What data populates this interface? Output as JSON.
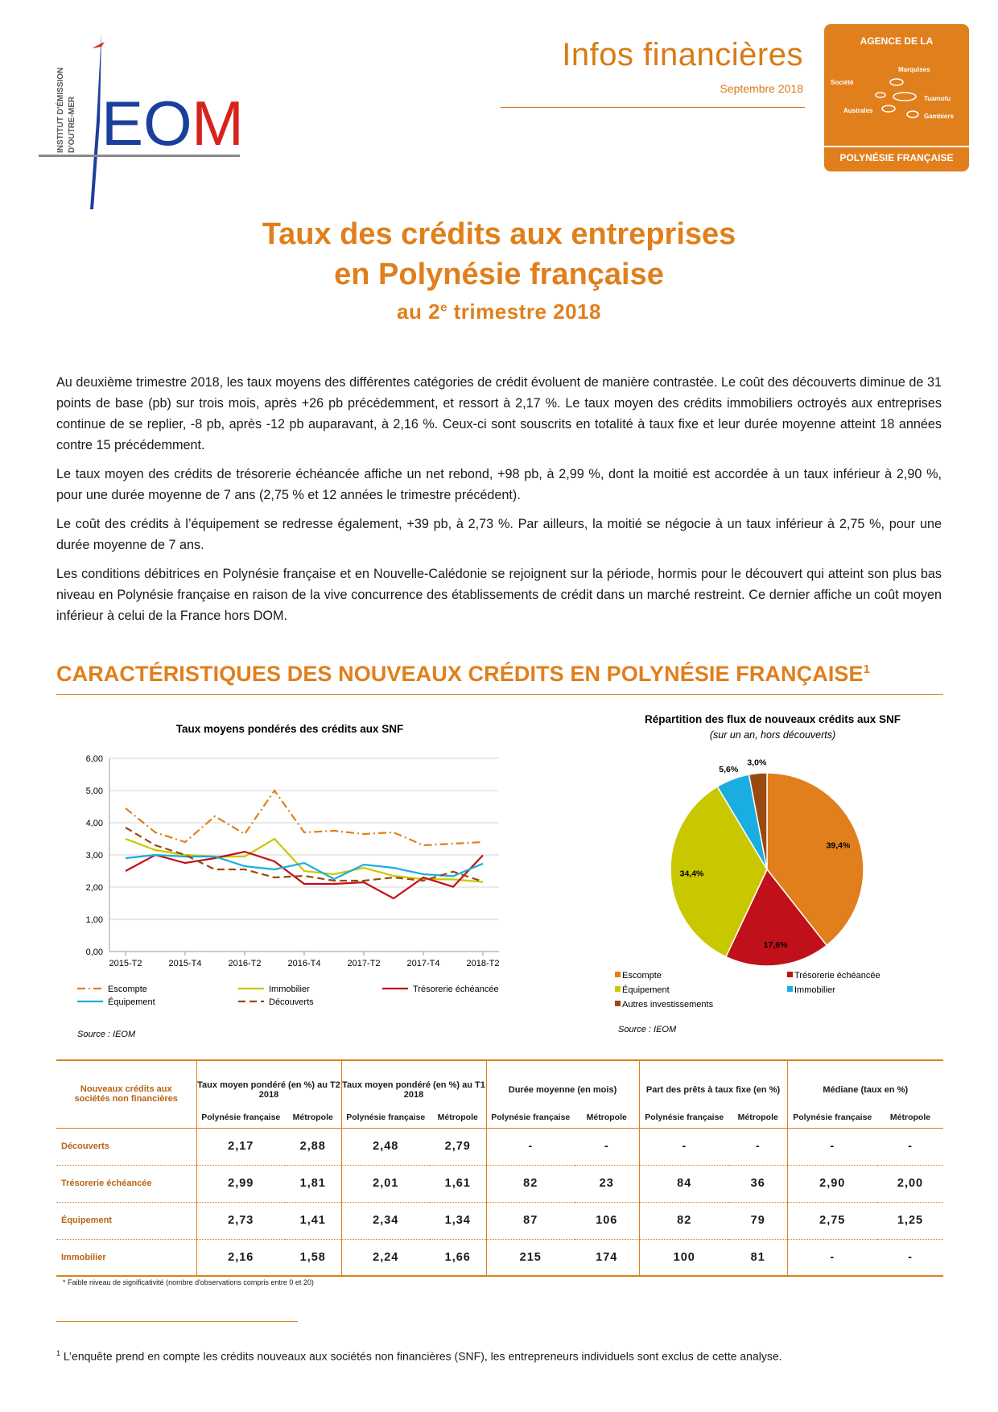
{
  "header": {
    "logo_text": "IEOM",
    "logo_sub": "Institut d'Émission d'Outre-Mer",
    "title": "Infos financières",
    "date": "Septembre 2018"
  },
  "agency": {
    "top": "AGENCE DE LA",
    "bottom": "POLYNÉSIE FRANÇAISE",
    "islands": [
      "Marquises",
      "Société",
      "Tuamotu",
      "Australes",
      "Gambiers"
    ]
  },
  "title": {
    "line1": "Taux des crédits aux entreprises",
    "line2": "en Polynésie française",
    "line3_pre": "au 2",
    "line3_sup": "e",
    "line3_post": " trimestre 2018"
  },
  "paragraphs": [
    "Au deuxième trimestre 2018, les taux moyens des différentes catégories de crédit évoluent de manière contrastée. Le coût des découverts diminue de 31 points de base (pb) sur trois mois, après +26 pb précédemment, et ressort à 2,17 %. Le taux moyen des crédits immobiliers octroyés aux entreprises continue de se replier, -8 pb, après -12 pb auparavant, à 2,16 %. Ceux-ci sont souscrits en totalité à taux fixe et leur durée moyenne atteint 18 années contre 15 précédemment.",
    "Le taux moyen des crédits de trésorerie échéancée affiche un net rebond, +98 pb, à 2,99 %, dont la moitié est accordée à un taux inférieur à 2,90 %, pour une durée moyenne de 7 ans (2,75 % et 12 années le trimestre précédent).",
    "Le coût des crédits à l’équipement se redresse également, +39 pb, à 2,73 %. Par ailleurs, la moitié se négocie à un taux inférieur à 2,75 %, pour une durée moyenne de 7 ans.",
    "Les conditions débitrices en Polynésie française et en Nouvelle-Calédonie se rejoignent sur la période, hormis pour le découvert qui atteint son plus bas niveau en Polynésie française en raison de la vive concurrence des établissements de crédit dans un marché restreint. Ce dernier affiche un coût moyen inférieur à celui de la France hors DOM."
  ],
  "section": {
    "title": "CARACTÉRISTIQUES DES NOUVEAUX CRÉDITS EN POLYNÉSIE FRANÇAISE",
    "sup": "1"
  },
  "chart_data": [
    {
      "type": "line",
      "title": "Taux moyens pondérés des crédits aux SNF",
      "x": [
        "2015-T2",
        "2015-T3",
        "2015-T4",
        "2016-T1",
        "2016-T2",
        "2016-T3",
        "2016-T4",
        "2017-T1",
        "2017-T2",
        "2017-T3",
        "2017-T4",
        "2018-T1",
        "2018-T2"
      ],
      "tick_labels": [
        "2015-T2",
        "2015-T4",
        "2016-T2",
        "2016-T4",
        "2017-T2",
        "2017-T4",
        "2018-T2"
      ],
      "y_ticks": [
        "0,00",
        "1,00",
        "2,00",
        "3,00",
        "4,00",
        "5,00",
        "6,00"
      ],
      "ylim": [
        0,
        6
      ],
      "grid": true,
      "legend_position": "bottom",
      "series": [
        {
          "name": "Escompte",
          "color": "#e07f1c",
          "style": "dashdot",
          "values": [
            4.45,
            3.7,
            3.4,
            4.2,
            3.65,
            5.0,
            3.7,
            3.75,
            3.65,
            3.7,
            3.3,
            3.35,
            3.4
          ]
        },
        {
          "name": "Immobilier",
          "color": "#c9c800",
          "style": "solid",
          "values": [
            3.5,
            3.15,
            3.0,
            2.95,
            2.95,
            3.5,
            2.5,
            2.4,
            2.6,
            2.35,
            2.25,
            2.24,
            2.16
          ]
        },
        {
          "name": "Trésorerie échéancée",
          "color": "#c0101a",
          "style": "solid",
          "values": [
            2.5,
            3.0,
            2.75,
            2.9,
            3.1,
            2.8,
            2.1,
            2.1,
            2.15,
            1.65,
            2.3,
            2.01,
            2.99
          ]
        },
        {
          "name": "Équipement",
          "color": "#1aaee0",
          "style": "solid",
          "values": [
            2.9,
            3.0,
            2.95,
            2.95,
            2.65,
            2.55,
            2.75,
            2.25,
            2.7,
            2.6,
            2.4,
            2.34,
            2.73
          ]
        },
        {
          "name": "Découverts",
          "color": "#9a4a10",
          "style": "dashed",
          "values": [
            3.85,
            3.3,
            3.0,
            2.55,
            2.55,
            2.3,
            2.35,
            2.2,
            2.2,
            2.3,
            2.2,
            2.48,
            2.17
          ]
        }
      ],
      "source": "Source : IEOM"
    },
    {
      "type": "pie",
      "title": "Répartition des flux de nouveaux crédits aux SNF",
      "subtitle": "(sur un an, hors découverts)",
      "slices": [
        {
          "label": "Escompte",
          "value": 39.4,
          "display": "39,4%",
          "color": "#e07f1c"
        },
        {
          "label": "Trésorerie échéancée",
          "value": 17.6,
          "display": "17,6%",
          "color": "#c0101a"
        },
        {
          "label": "Équipement",
          "value": 34.4,
          "display": "34,4%",
          "color": "#c9c800"
        },
        {
          "label": "Immobilier",
          "value": 5.6,
          "display": "5,6%",
          "color": "#1aaee0"
        },
        {
          "label": "Autres investissements",
          "value": 3.0,
          "display": "3,0%",
          "color": "#9a4a10"
        }
      ],
      "legend_position": "bottom",
      "source": "Source : IEOM"
    }
  ],
  "table": {
    "corner": "Nouveaux crédits aux sociétés non financières",
    "groups": [
      "Taux moyen pondéré (en %) au T2 2018",
      "Taux moyen pondéré (en %) au T1 2018",
      "Durée moyenne (en mois)",
      "Part des prêts à taux fixe (en %)",
      "Médiane (taux en %)"
    ],
    "sub_a": "Polynésie française",
    "sub_b": "Métropole",
    "rows": [
      {
        "label": "Découverts",
        "cells": [
          "2,17",
          "2,88",
          "2,48",
          "2,79",
          "-",
          "-",
          "-",
          "-",
          "-",
          "-"
        ]
      },
      {
        "label": "Trésorerie échéancée",
        "cells": [
          "2,99",
          "1,81",
          "2,01",
          "1,61",
          "82",
          "23",
          "84",
          "36",
          "2,90",
          "2,00"
        ]
      },
      {
        "label": "Équipement",
        "cells": [
          "2,73",
          "1,41",
          "2,34",
          "1,34",
          "87",
          "106",
          "82",
          "79",
          "2,75",
          "1,25"
        ]
      },
      {
        "label": "Immobilier",
        "cells": [
          "2,16",
          "1,58",
          "2,24",
          "1,66",
          "215",
          "174",
          "100",
          "81",
          "-",
          "-"
        ]
      }
    ],
    "note": "* Faible niveau de significativité (nombre d'observations compris entre 0 et 20)"
  },
  "footnote": {
    "num": "1",
    "text": " L’enquête prend en compte les crédits nouveaux aux sociétés non financières (SNF), les entrepreneurs individuels sont exclus de cette analyse."
  }
}
